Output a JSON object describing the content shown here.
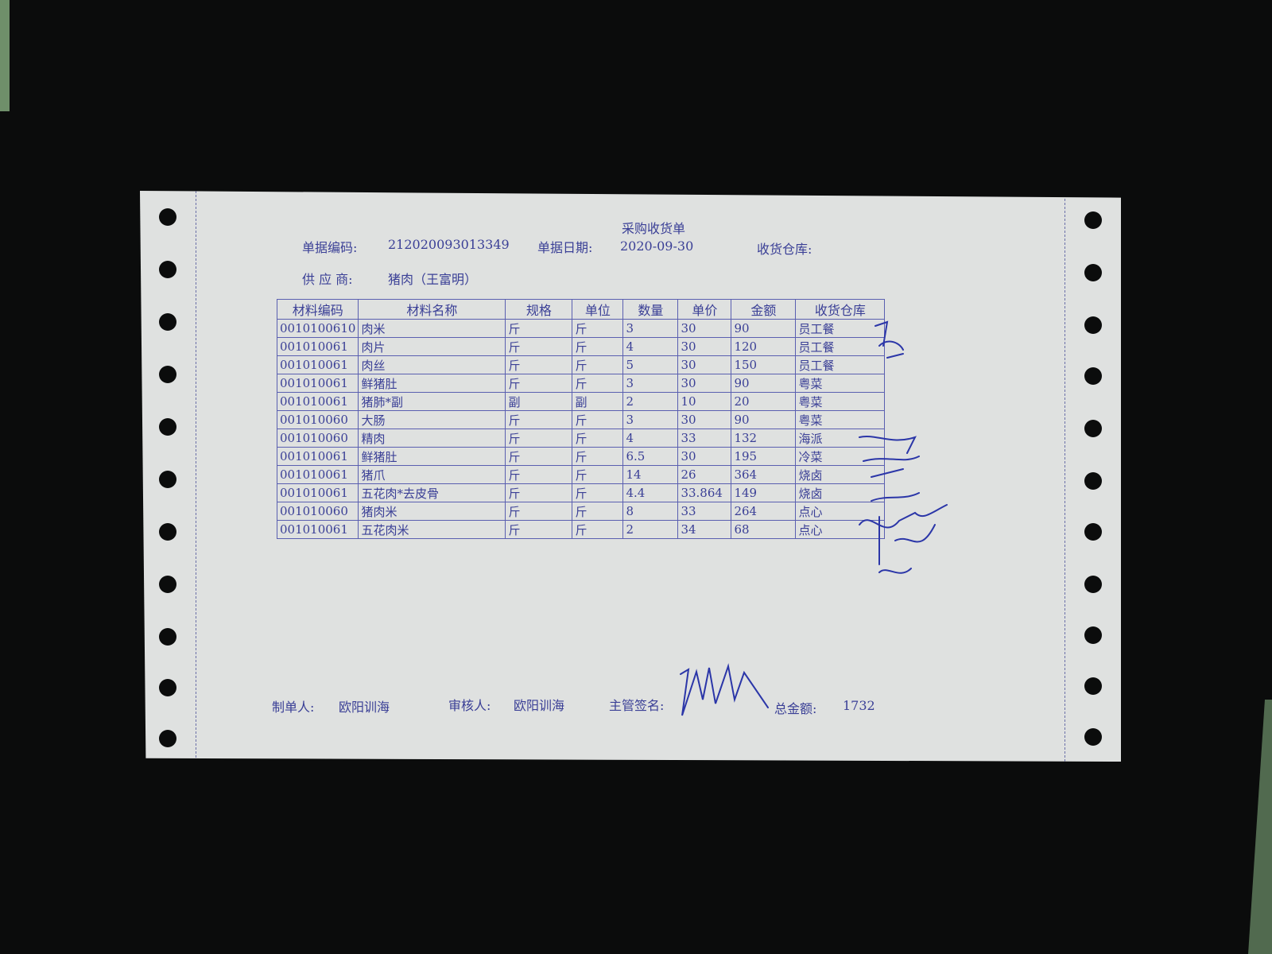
{
  "document": {
    "title": "采购收货单",
    "doc_no_label": "单据编码:",
    "doc_no": "212020093013349",
    "date_label": "单据日期:",
    "date": "2020-09-30",
    "warehouse_label": "收货仓库:",
    "supplier_label": "供 应 商:",
    "supplier": "猪肉（王富明）"
  },
  "table": {
    "headers": [
      "材料编码",
      "材料名称",
      "规格",
      "单位",
      "数量",
      "单价",
      "金额",
      "收货仓库"
    ],
    "rows": [
      [
        "0010100610",
        "肉米",
        "斤",
        "斤",
        "3",
        "30",
        "90",
        "员工餐"
      ],
      [
        "001010061",
        "肉片",
        "斤",
        "斤",
        "4",
        "30",
        "120",
        "员工餐"
      ],
      [
        "001010061",
        "肉丝",
        "斤",
        "斤",
        "5",
        "30",
        "150",
        "员工餐"
      ],
      [
        "001010061",
        "鲜猪肚",
        "斤",
        "斤",
        "3",
        "30",
        "90",
        "粤菜"
      ],
      [
        "001010061",
        "猪肺*副",
        "副",
        "副",
        "2",
        "10",
        "20",
        "粤菜"
      ],
      [
        "001010060",
        "大肠",
        "斤",
        "斤",
        "3",
        "30",
        "90",
        "粤菜"
      ],
      [
        "001010060",
        "精肉",
        "斤",
        "斤",
        "4",
        "33",
        "132",
        "海派"
      ],
      [
        "001010061",
        "鲜猪肚",
        "斤",
        "斤",
        "6.5",
        "30",
        "195",
        "冷菜"
      ],
      [
        "001010061",
        "猪爪",
        "斤",
        "斤",
        "14",
        "26",
        "364",
        "烧卤"
      ],
      [
        "001010061",
        "五花肉*去皮骨",
        "斤",
        "斤",
        "4.4",
        "33.864",
        "149",
        "烧卤"
      ],
      [
        "001010060",
        "猪肉米",
        "斤",
        "斤",
        "8",
        "33",
        "264",
        "点心"
      ],
      [
        "001010061",
        "五花肉米",
        "斤",
        "斤",
        "2",
        "34",
        "68",
        "点心"
      ]
    ]
  },
  "footer": {
    "maker_label": "制单人:",
    "maker": "欧阳训海",
    "reviewer_label": "审核人:",
    "reviewer": "欧阳训海",
    "supervisor_label": "主管签名:",
    "total_label": "总金额:",
    "total": "1732"
  },
  "colors": {
    "ink": "#3a3f96",
    "paper": "#dfe1e0",
    "background": "#0b0c0c"
  }
}
